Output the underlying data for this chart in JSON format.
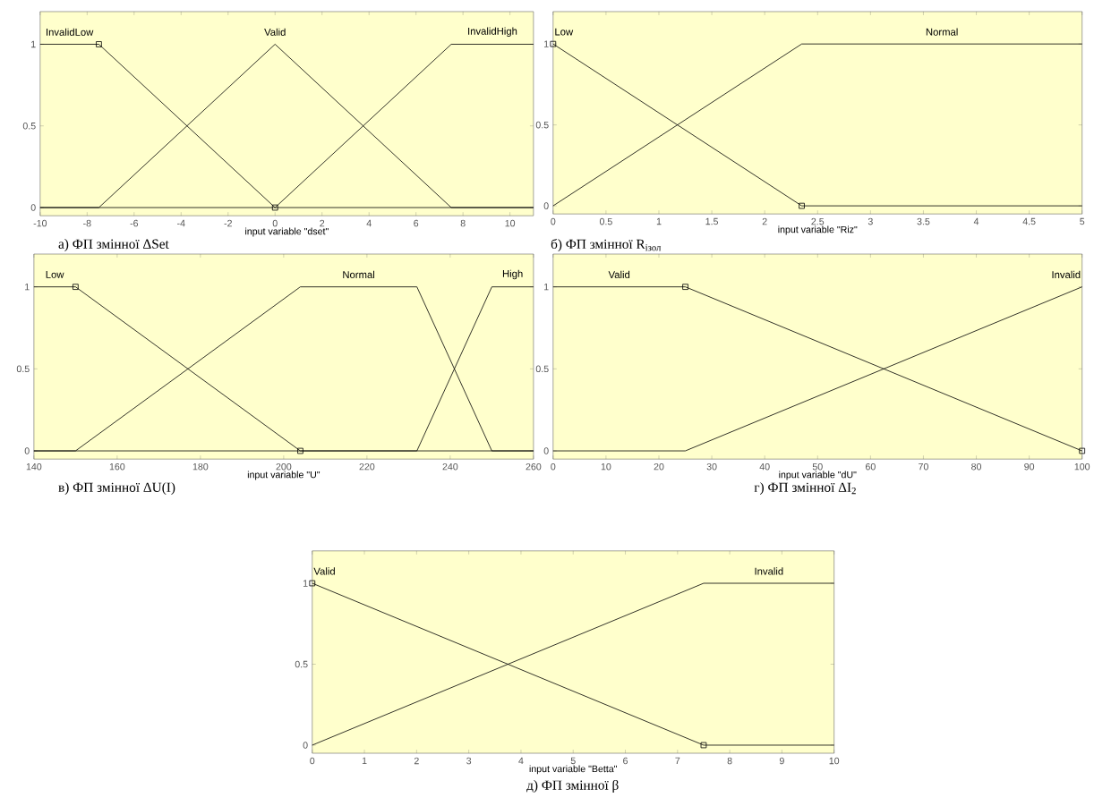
{
  "chart_data": [
    {
      "type": "line",
      "title": "а) ФП змінної ΔSet",
      "xlabel": "input variable \"dset\"",
      "xlim": [
        -10,
        11
      ],
      "ylim": [
        -0.05,
        1.2
      ],
      "xticks": [
        -10,
        -8,
        -6,
        -4,
        -2,
        0,
        2,
        4,
        6,
        8,
        10
      ],
      "yticks": [
        0,
        0.5,
        1
      ],
      "grid": false,
      "legend": false,
      "series": [
        {
          "name": "InvalidLow",
          "color": "#000000",
          "x": [
            -10,
            -7.5,
            0,
            11
          ],
          "values": [
            1,
            1,
            0,
            0
          ]
        },
        {
          "name": "Valid",
          "color": "#000000",
          "x": [
            -10,
            -7.5,
            0,
            7.5,
            11
          ],
          "values": [
            0,
            0,
            1,
            0,
            0
          ]
        },
        {
          "name": "InvalidHigh",
          "color": "#000000",
          "x": [
            -10,
            0,
            7.5,
            11
          ],
          "values": [
            0,
            0,
            1,
            1
          ]
        },
        {
          "type": "scatter",
          "marker": "square",
          "color": "#000000",
          "x": [
            -7.5,
            0
          ],
          "values": [
            1,
            0
          ]
        }
      ]
    },
    {
      "type": "line",
      "title": "б) ФП змінної R$_{ізол}$",
      "xlabel": "input variable \"Riz\"",
      "xlim": [
        0,
        5
      ],
      "ylim": [
        -0.05,
        1.2
      ],
      "xticks": [
        0,
        0.5,
        1,
        1.5,
        2,
        2.5,
        3,
        3.5,
        4,
        4.5,
        5
      ],
      "yticks": [
        0,
        0.5,
        1
      ],
      "grid": false,
      "legend": false,
      "series": [
        {
          "name": "Low",
          "color": "#000000",
          "x": [
            0,
            2.35,
            5
          ],
          "values": [
            1,
            0,
            0
          ]
        },
        {
          "name": "Normal",
          "color": "#000000",
          "x": [
            0,
            2.35,
            5
          ],
          "values": [
            0,
            1,
            1
          ]
        },
        {
          "type": "scatter",
          "marker": "square",
          "color": "#000000",
          "x": [
            0,
            2.35
          ],
          "values": [
            1,
            0
          ]
        }
      ]
    },
    {
      "type": "line",
      "title": "в) ФП змінної ΔU(I)",
      "xlabel": "input variable \"U\"",
      "xlim": [
        140,
        260
      ],
      "ylim": [
        -0.05,
        1.2
      ],
      "xticks": [
        140,
        160,
        180,
        200,
        220,
        240,
        260
      ],
      "yticks": [
        0,
        0.5,
        1
      ],
      "grid": false,
      "legend": false,
      "series": [
        {
          "name": "Low",
          "color": "#000000",
          "x": [
            140,
            150,
            204,
            260
          ],
          "values": [
            1,
            1,
            0,
            0
          ]
        },
        {
          "name": "Normal",
          "color": "#000000",
          "x": [
            140,
            150,
            204,
            232,
            250,
            260
          ],
          "values": [
            0,
            0,
            1,
            1,
            0,
            0
          ]
        },
        {
          "name": "High",
          "color": "#000000",
          "x": [
            140,
            232,
            250,
            260
          ],
          "values": [
            0,
            0,
            1,
            1
          ]
        },
        {
          "type": "scatter",
          "marker": "square",
          "color": "#000000",
          "x": [
            150,
            204
          ],
          "values": [
            1,
            0
          ]
        }
      ]
    },
    {
      "type": "line",
      "title": "г) ФП змінної ΔI$_{2}$",
      "xlabel": "input variable \"dU\"",
      "xlim": [
        0,
        100
      ],
      "ylim": [
        -0.05,
        1.2
      ],
      "xticks": [
        0,
        10,
        20,
        30,
        40,
        50,
        60,
        70,
        80,
        90,
        100
      ],
      "yticks": [
        0,
        0.5,
        1
      ],
      "grid": false,
      "legend": false,
      "series": [
        {
          "name": "Valid",
          "color": "#000000",
          "x": [
            0,
            25,
            100
          ],
          "values": [
            1,
            1,
            0
          ]
        },
        {
          "name": "Invalid",
          "color": "#000000",
          "x": [
            0,
            25,
            100
          ],
          "values": [
            0,
            0,
            1
          ]
        },
        {
          "type": "scatter",
          "marker": "square",
          "color": "#000000",
          "x": [
            25,
            100
          ],
          "values": [
            1,
            0
          ]
        }
      ]
    },
    {
      "type": "line",
      "title": "д) ФП змінної β",
      "xlabel": "input variable \"Betta\"",
      "xlim": [
        0,
        10
      ],
      "ylim": [
        -0.05,
        1.2
      ],
      "xticks": [
        0,
        1,
        2,
        3,
        4,
        5,
        6,
        7,
        8,
        9,
        10
      ],
      "yticks": [
        0,
        0.5,
        1
      ],
      "grid": false,
      "legend": false,
      "series": [
        {
          "name": "Valid",
          "color": "#000000",
          "x": [
            0,
            7.5,
            10
          ],
          "values": [
            1,
            0,
            0
          ]
        },
        {
          "name": "Invalid",
          "color": "#000000",
          "x": [
            0,
            7.5,
            10
          ],
          "values": [
            0,
            1,
            1
          ]
        },
        {
          "type": "scatter",
          "marker": "square",
          "color": "#000000",
          "x": [
            0,
            7.5
          ],
          "values": [
            1,
            0
          ]
        }
      ]
    }
  ]
}
